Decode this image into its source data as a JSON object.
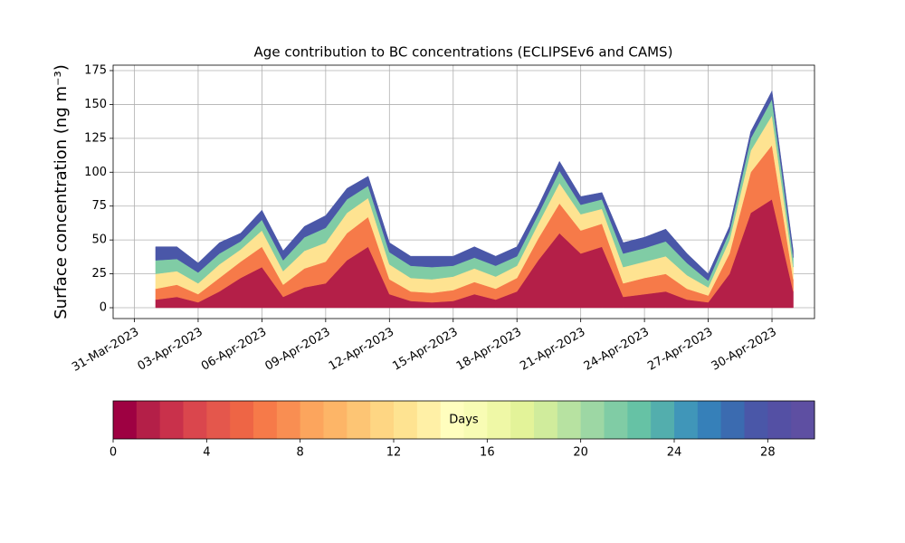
{
  "chart_data": {
    "type": "stacked_area",
    "title": "Age contribution to BC concentrations (ECLIPSEv6 and CAMS)",
    "y_label": "Surface concentration (ng m⁻³)",
    "x": [
      "2023-04-01",
      "2023-04-02",
      "2023-04-03",
      "2023-04-04",
      "2023-04-05",
      "2023-04-06",
      "2023-04-07",
      "2023-04-08",
      "2023-04-09",
      "2023-04-10",
      "2023-04-11",
      "2023-04-12",
      "2023-04-13",
      "2023-04-14",
      "2023-04-15",
      "2023-04-16",
      "2023-04-17",
      "2023-04-18",
      "2023-04-19",
      "2023-04-20",
      "2023-04-21",
      "2023-04-22",
      "2023-04-23",
      "2023-04-24",
      "2023-04-25",
      "2023-04-26",
      "2023-04-27",
      "2023-04-28",
      "2023-04-29",
      "2023-04-30",
      "2023-05-01"
    ],
    "series": [
      {
        "color": "#b41f48",
        "values": [
          6,
          8,
          4,
          12,
          22,
          30,
          8,
          15,
          18,
          35,
          45,
          10,
          5,
          4,
          5,
          10,
          6,
          12,
          35,
          55,
          40,
          45,
          8,
          10,
          12,
          6,
          4,
          25,
          70,
          80,
          12
        ]
      },
      {
        "color": "#f67a49",
        "values": [
          8,
          9,
          6,
          10,
          12,
          15,
          9,
          14,
          16,
          20,
          22,
          11,
          7,
          7,
          8,
          9,
          8,
          10,
          16,
          22,
          17,
          17,
          10,
          12,
          13,
          8,
          5,
          15,
          30,
          40,
          9
        ]
      },
      {
        "color": "#fee391",
        "values": [
          11,
          10,
          8,
          10,
          9,
          12,
          10,
          13,
          14,
          15,
          14,
          11,
          10,
          10,
          10,
          10,
          9,
          9,
          11,
          15,
          12,
          11,
          12,
          12,
          13,
          10,
          6,
          10,
          16,
          22,
          9
        ]
      },
      {
        "color": "#80cca5",
        "values": [
          10,
          9,
          8,
          8,
          6,
          8,
          8,
          10,
          11,
          10,
          9,
          9,
          9,
          9,
          8,
          8,
          8,
          7,
          7,
          9,
          7,
          7,
          10,
          10,
          11,
          9,
          5,
          6,
          9,
          12,
          7
        ]
      },
      {
        "color": "#4a57a8",
        "values": [
          10,
          9,
          7,
          8,
          6,
          7,
          7,
          8,
          9,
          8,
          7,
          7,
          7,
          8,
          7,
          8,
          7,
          7,
          6,
          7,
          6,
          5,
          8,
          8,
          9,
          7,
          5,
          4,
          5,
          6,
          5
        ]
      }
    ],
    "xlim": [
      "2023-03-30",
      "2023-05-02"
    ],
    "xticks": [
      {
        "value": "2023-03-31",
        "label": "31-Mar-2023"
      },
      {
        "value": "2023-04-03",
        "label": "03-Apr-2023"
      },
      {
        "value": "2023-04-06",
        "label": "06-Apr-2023"
      },
      {
        "value": "2023-04-09",
        "label": "09-Apr-2023"
      },
      {
        "value": "2023-04-12",
        "label": "12-Apr-2023"
      },
      {
        "value": "2023-04-15",
        "label": "15-Apr-2023"
      },
      {
        "value": "2023-04-18",
        "label": "18-Apr-2023"
      },
      {
        "value": "2023-04-21",
        "label": "21-Apr-2023"
      },
      {
        "value": "2023-04-24",
        "label": "24-Apr-2023"
      },
      {
        "value": "2023-04-27",
        "label": "27-Apr-2023"
      },
      {
        "value": "2023-04-30",
        "label": "30-Apr-2023"
      }
    ],
    "ylim": [
      -8,
      179
    ],
    "yticks": [
      0,
      25,
      50,
      75,
      100,
      125,
      150,
      175
    ],
    "grid": true,
    "colorbar": {
      "label": "Days",
      "lim": [
        0,
        30
      ],
      "ticks": [
        0,
        4,
        8,
        12,
        16,
        20,
        24,
        28
      ],
      "colors": [
        "#9e0142",
        "#b41f48",
        "#c9314b",
        "#da464d",
        "#e4574c",
        "#ee6545",
        "#f67a49",
        "#f98e52",
        "#fca55d",
        "#fdb567",
        "#fdc574",
        "#fed683",
        "#fee391",
        "#fff0a6",
        "#fffebe",
        "#f8fcb4",
        "#eff8a6",
        "#e3f399",
        "#d0ec9c",
        "#b7e2a1",
        "#9dd7a4",
        "#80cca5",
        "#66c2a5",
        "#53aead",
        "#4096b9",
        "#3680b9",
        "#3b6bb0",
        "#4a57a8",
        "#5450a4",
        "#5e4fa2"
      ]
    }
  }
}
